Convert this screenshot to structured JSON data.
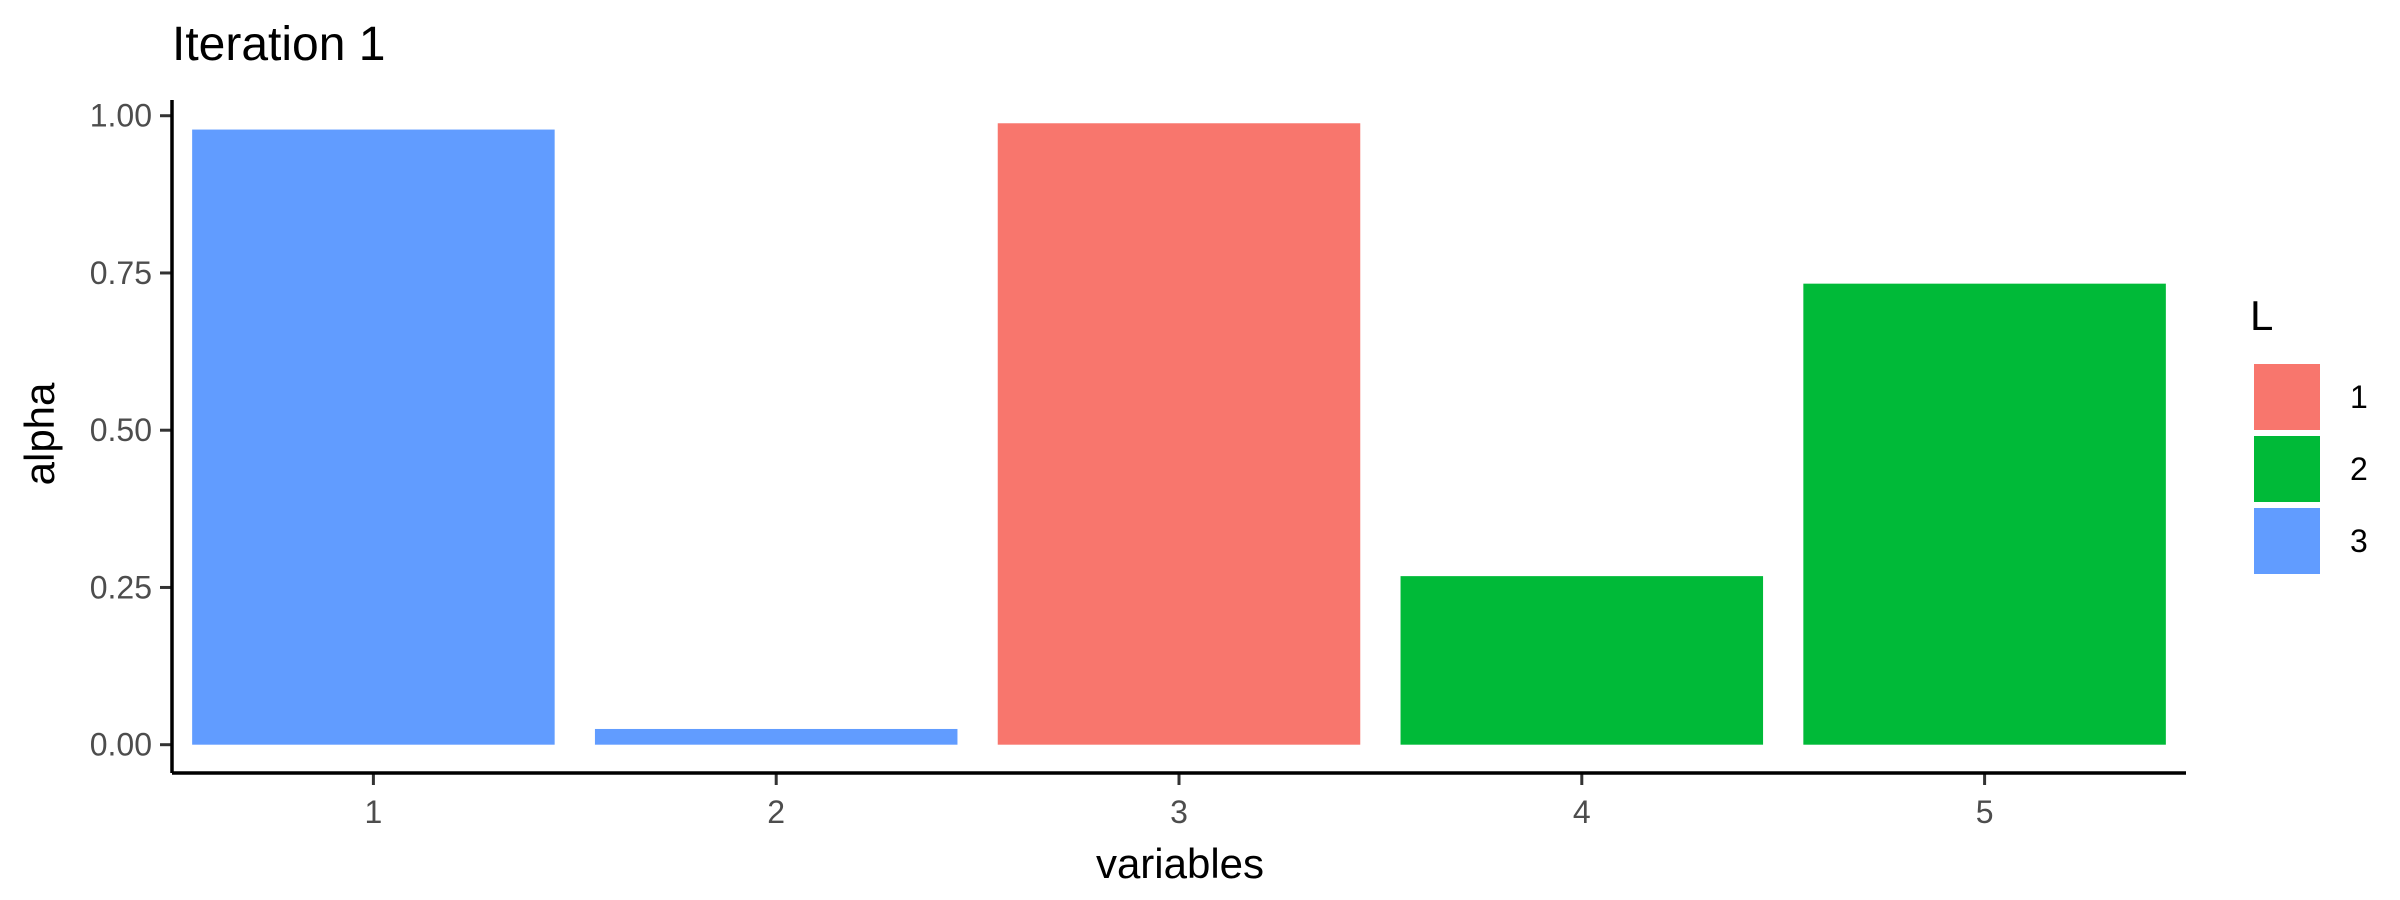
{
  "chart_data": {
    "type": "bar",
    "title": "Iteration 1",
    "xlabel": "variables",
    "ylabel": "alpha",
    "categories": [
      "1",
      "2",
      "3",
      "4",
      "5"
    ],
    "values": [
      0.978,
      0.025,
      0.988,
      0.268,
      0.733
    ],
    "groups": [
      "3",
      "3",
      "1",
      "2",
      "2"
    ],
    "ylim": [
      -0.045,
      1.025
    ],
    "yticks": [
      0.0,
      0.25,
      0.5,
      0.75,
      1.0
    ],
    "ytick_labels": [
      "0.00",
      "0.25",
      "0.50",
      "0.75",
      "1.00"
    ],
    "grid": false,
    "legend": {
      "title": "L",
      "placement": "right",
      "entries": [
        {
          "label": "1",
          "color": "#F8766D"
        },
        {
          "label": "2",
          "color": "#00BA38"
        },
        {
          "label": "3",
          "color": "#619CFF"
        }
      ]
    }
  }
}
